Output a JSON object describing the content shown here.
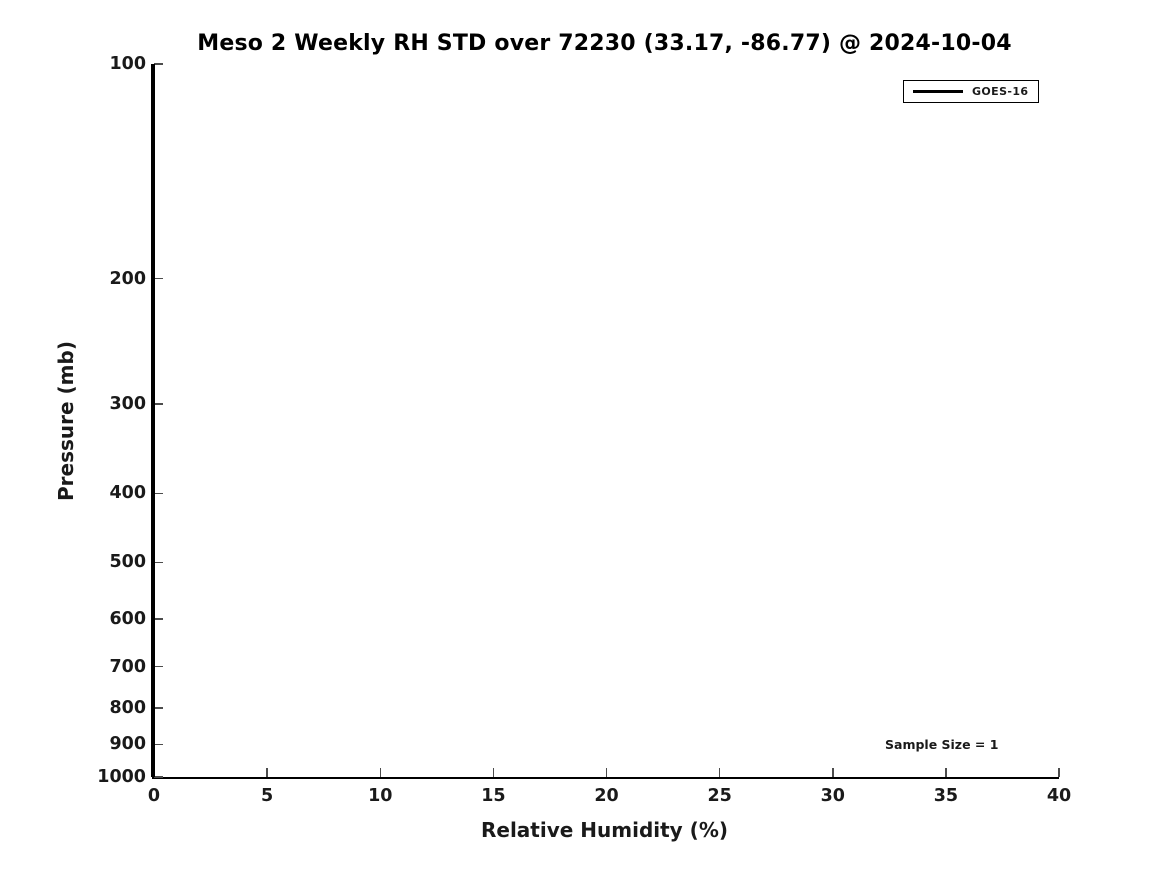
{
  "title": "Meso 2 Weekly RH STD over 72230 (33.17, -86.77) @ 2024-10-04",
  "chart_data": {
    "type": "line",
    "title": "Meso 2 Weekly RH STD over 72230 (33.17, -86.77) @ 2024-10-04",
    "xlabel": "Relative Humidity (%)",
    "ylabel": "Pressure (mb)",
    "xlim": [
      0,
      40
    ],
    "xticks": [
      0,
      5,
      10,
      15,
      20,
      25,
      30,
      35,
      40
    ],
    "ylim": [
      100,
      1000
    ],
    "yscale": "log",
    "y_axis_inverted": true,
    "yticks": [
      100,
      200,
      300,
      400,
      500,
      600,
      700,
      800,
      900,
      1000
    ],
    "grid": false,
    "spines": [
      "left",
      "bottom"
    ],
    "legend": {
      "position": "top-right",
      "entries": [
        {
          "label": "GOES-16",
          "color": "#000000",
          "linewidth": 3
        }
      ]
    },
    "series": [
      {
        "name": "GOES-16",
        "color": "#000000",
        "x": [
          0,
          0
        ],
        "pressure": [
          100,
          1000
        ]
      }
    ],
    "annotations": [
      {
        "text": "Sample Size = 1",
        "position": "lower-right"
      }
    ]
  },
  "colors": {
    "background": "#ffffff",
    "line": "#000000",
    "text": "#1a1a1a",
    "tick": "#4d4d4d"
  }
}
